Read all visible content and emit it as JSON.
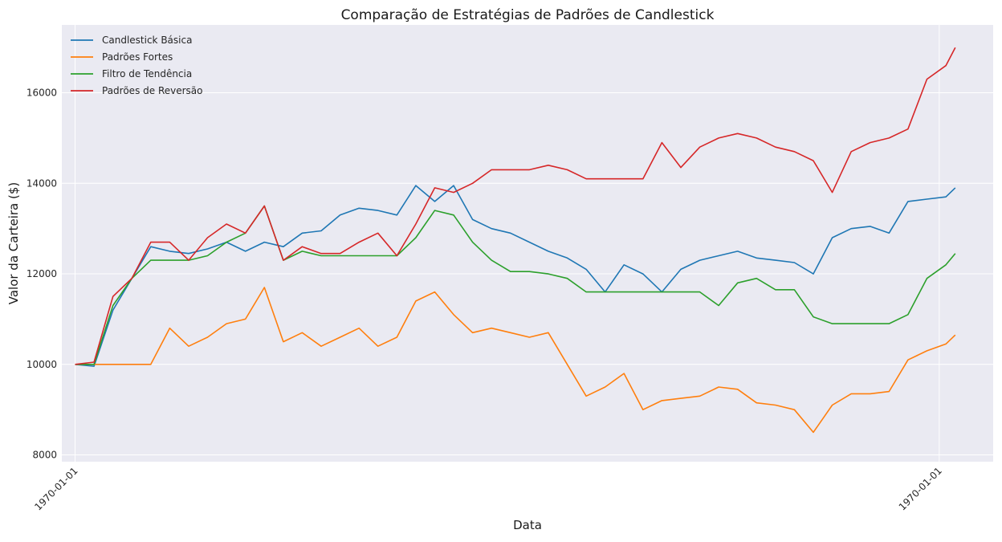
{
  "chart_data": {
    "type": "line",
    "title": "Comparação de Estratégias de Padrões de Candlestick",
    "xlabel": "Data",
    "ylabel": "Valor da Carteira ($)",
    "x_tick_labels": [
      "1970-01-01",
      "1970-01-01"
    ],
    "y_tick_labels": [
      "8000",
      "10000",
      "12000",
      "14000",
      "16000"
    ],
    "ylim": [
      7850,
      17500
    ],
    "xlim": [
      -28,
      1940
    ],
    "grid": true,
    "legend_position": "top-left",
    "x": [
      0,
      40,
      80,
      120,
      160,
      200,
      240,
      280,
      320,
      360,
      400,
      440,
      480,
      520,
      560,
      600,
      640,
      680,
      720,
      760,
      800,
      840,
      880,
      920,
      960,
      1000,
      1040,
      1080,
      1120,
      1160,
      1200,
      1240,
      1280,
      1320,
      1360,
      1400,
      1440,
      1480,
      1520,
      1560,
      1600,
      1640,
      1680,
      1720,
      1760,
      1800,
      1840,
      1860
    ],
    "series": [
      {
        "name": "Candlestick Básica",
        "color": "#1f77b4",
        "values": [
          10000,
          9960,
          11200,
          11900,
          12600,
          12500,
          12450,
          12550,
          12700,
          12500,
          12700,
          12600,
          12900,
          12950,
          13300,
          13450,
          13400,
          13300,
          13950,
          13600,
          13950,
          13200,
          13000,
          12900,
          12700,
          12500,
          12350,
          12100,
          11600,
          12200,
          12000,
          11600,
          12100,
          12300,
          12400,
          12500,
          12350,
          12300,
          12250,
          12000,
          12800,
          13000,
          13050,
          12900,
          13600,
          13650,
          13700,
          13900
        ]
      },
      {
        "name": "Padrões Fortes",
        "color": "#ff7f0e",
        "values": [
          10000,
          10000,
          10000,
          10000,
          10000,
          10800,
          10400,
          10600,
          10900,
          11000,
          11700,
          10500,
          10700,
          10400,
          10600,
          10800,
          10400,
          10600,
          11400,
          11600,
          11100,
          10700,
          10800,
          10700,
          10600,
          10700,
          10000,
          9300,
          9500,
          9800,
          9000,
          9200,
          9250,
          9300,
          9500,
          9450,
          9150,
          9100,
          9000,
          8500,
          9100,
          9350,
          9350,
          9400,
          10100,
          10300,
          10450,
          10650
        ]
      },
      {
        "name": "Filtro de Tendência",
        "color": "#2ca02c",
        "values": [
          10000,
          10000,
          11300,
          11900,
          12300,
          12300,
          12300,
          12400,
          12700,
          12900,
          13500,
          12300,
          12500,
          12400,
          12400,
          12400,
          12400,
          12400,
          12800,
          13400,
          13300,
          12700,
          12300,
          12050,
          12050,
          12000,
          11900,
          11600,
          11600,
          11600,
          11600,
          11600,
          11600,
          11600,
          11300,
          11800,
          11900,
          11650,
          11650,
          11050,
          10900,
          10900,
          10900,
          10900,
          11100,
          11900,
          12200,
          12450
        ]
      },
      {
        "name": "Padrões de Reversão",
        "color": "#d62728",
        "values": [
          10000,
          10050,
          11500,
          11900,
          12700,
          12700,
          12300,
          12800,
          13100,
          12900,
          13500,
          12300,
          12600,
          12450,
          12450,
          12700,
          12900,
          12400,
          13100,
          13900,
          13800,
          14000,
          14300,
          14300,
          14300,
          14400,
          14300,
          14100,
          14100,
          14100,
          14100,
          14900,
          14350,
          14800,
          15000,
          15100,
          15000,
          14800,
          14700,
          14500,
          13800,
          14700,
          14900,
          15000,
          15200,
          16300,
          16600,
          17000
        ]
      }
    ]
  }
}
